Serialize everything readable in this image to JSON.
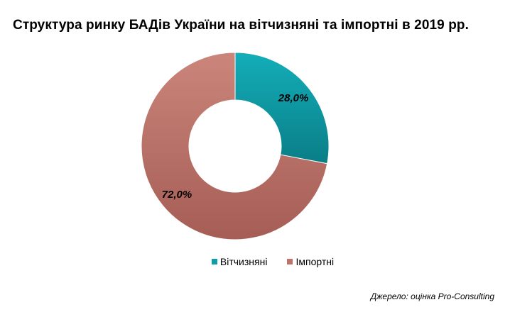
{
  "chart_data": {
    "type": "pie",
    "variant": "donut",
    "title": "Структура ринку БАДів України на вітчизняні та імпортні в 2019 рр.",
    "categories": [
      "Вітчизняні",
      "Імпортні"
    ],
    "values": [
      28.0,
      72.0
    ],
    "data_labels": [
      "28,0%",
      "72,0%"
    ],
    "colors": [
      "#0F9EA8",
      "#C0736A"
    ],
    "legend_position": "bottom",
    "start": "12 o'clock, clockwise"
  },
  "source": "Джерело: оцінка Pro-Consulting"
}
